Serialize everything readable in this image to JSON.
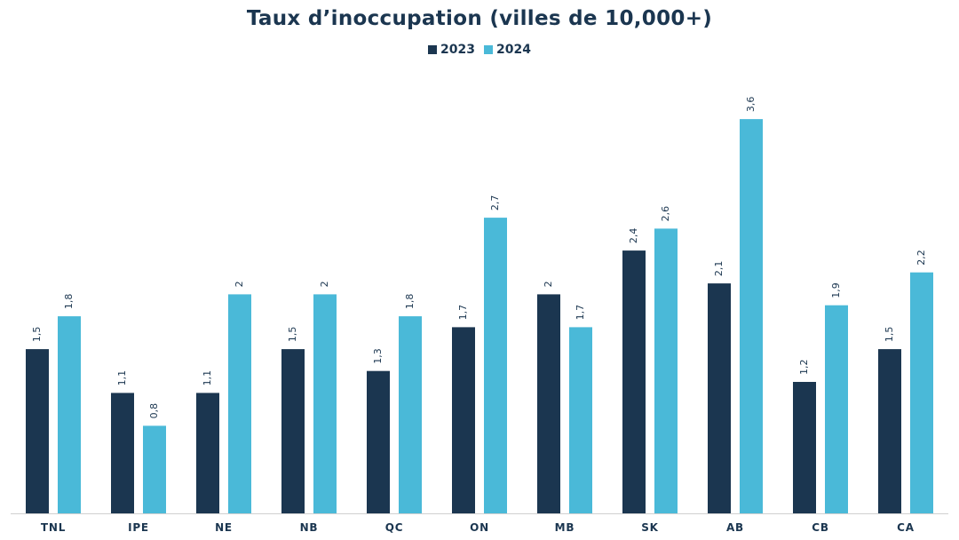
{
  "chart_data": {
    "type": "bar",
    "title": "Taux d’inoccupation (villes de 10,000+)",
    "categories": [
      "TNL",
      "IPE",
      "NE",
      "NB",
      "QC",
      "ON",
      "MB",
      "SK",
      "AB",
      "CB",
      "CA"
    ],
    "series": [
      {
        "name": "2023",
        "color": "#1b3650",
        "values": [
          1.5,
          1.1,
          1.1,
          1.5,
          1.3,
          1.7,
          2,
          2.4,
          2.1,
          1.2,
          1.5
        ],
        "labels": [
          "1,5",
          "1,1",
          "1,1",
          "1,5",
          "1,3",
          "1,7",
          "2",
          "2,4",
          "2,1",
          "1,2",
          "1,5"
        ]
      },
      {
        "name": "2024",
        "color": "#4ab9d8",
        "values": [
          1.8,
          0.8,
          2,
          2,
          1.8,
          2.7,
          1.7,
          2.6,
          3.6,
          1.9,
          2.2
        ],
        "labels": [
          "1,8",
          "0,8",
          "2",
          "2",
          "1,8",
          "2,7",
          "1,7",
          "2,6",
          "3,6",
          "1,9",
          "2,2"
        ]
      }
    ],
    "xlabel": "",
    "ylabel": "",
    "ylim": [
      0,
      3.6
    ],
    "grid": false,
    "legend_position": "top-center"
  }
}
